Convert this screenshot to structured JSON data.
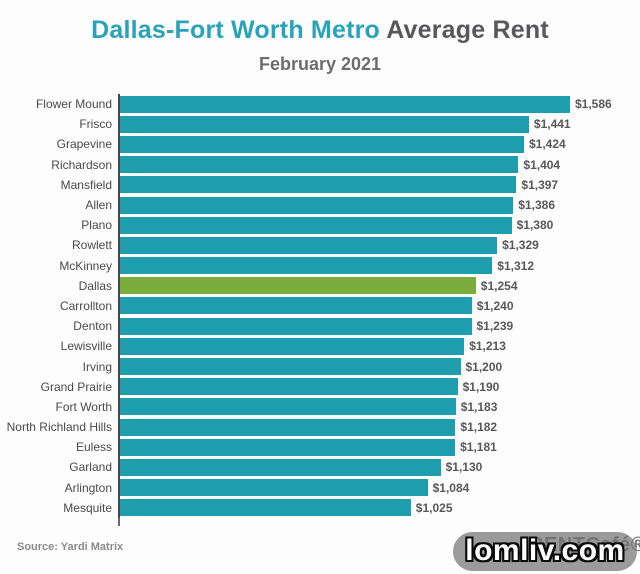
{
  "header": {
    "title_highlight": "Dallas-Fort Worth Metro",
    "title_rest": " Average Rent",
    "subtitle": "February 2021"
  },
  "chart_data": {
    "type": "bar",
    "orientation": "horizontal",
    "title": "Dallas-Fort Worth Metro Average Rent",
    "subtitle": "February 2021",
    "categories": [
      "Flower Mound",
      "Frisco",
      "Grapevine",
      "Richardson",
      "Mansfield",
      "Allen",
      "Plano",
      "Rowlett",
      "McKinney",
      "Dallas",
      "Carrollton",
      "Denton",
      "Lewisville",
      "Irving",
      "Grand Prairie",
      "Fort Worth",
      "North Richland Hills",
      "Euless",
      "Garland",
      "Arlington",
      "Mesquite"
    ],
    "values": [
      1586,
      1441,
      1424,
      1404,
      1397,
      1386,
      1380,
      1329,
      1312,
      1254,
      1240,
      1239,
      1213,
      1200,
      1190,
      1183,
      1182,
      1181,
      1130,
      1084,
      1025
    ],
    "value_labels": [
      "$1,586",
      "$1,441",
      "$1,424",
      "$1,404",
      "$1,397",
      "$1,386",
      "$1,380",
      "$1,329",
      "$1,312",
      "$1,254",
      "$1,240",
      "$1,239",
      "$1,213",
      "$1,200",
      "$1,190",
      "$1,183",
      "$1,182",
      "$1,181",
      "$1,130",
      "$1,084",
      "$1,025"
    ],
    "highlight_category": "Dallas",
    "xlim": [
      0,
      1586
    ],
    "grid": false,
    "legend": false,
    "bar_color": "#1e9dad",
    "highlight_color": "#7aad3c",
    "units": "USD per month"
  },
  "footer": {
    "source": "Source: Yardi Matrix",
    "logo_text": "RENTCafé®",
    "watermark": "lomliv.com"
  }
}
